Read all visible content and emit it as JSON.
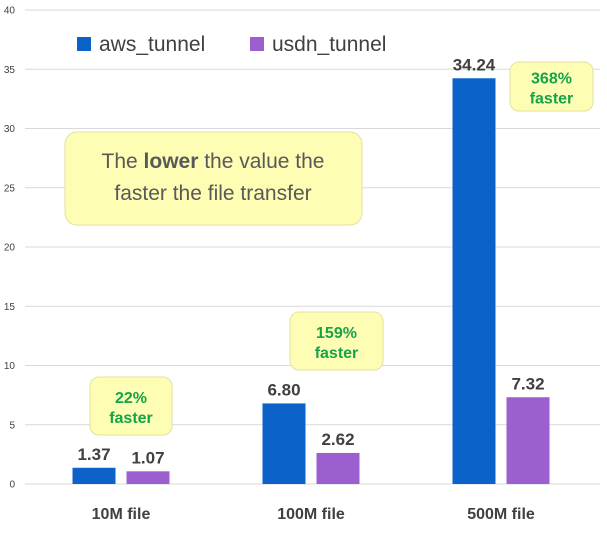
{
  "chart_data": {
    "type": "bar",
    "categories": [
      "10M file",
      "100M file",
      "500M file"
    ],
    "series": [
      {
        "name": "aws_tunnel",
        "color": "#0b63c9",
        "values": [
          1.37,
          6.8,
          34.24
        ],
        "labels": [
          "1.37",
          "6.80",
          "34.24"
        ]
      },
      {
        "name": "usdn_tunnel",
        "color": "#9b5fd0",
        "values": [
          1.07,
          2.62,
          7.32
        ],
        "labels": [
          "1.07",
          "2.62",
          "7.32"
        ]
      }
    ],
    "yticks": [
      "0",
      "5",
      "10",
      "15",
      "20",
      "25",
      "30",
      "35",
      "40"
    ],
    "ylim": [
      0,
      40
    ],
    "grid": true,
    "legend_position": "top-left",
    "annotations": [
      {
        "category": "10M file",
        "line1": "22%",
        "line2": "faster",
        "color": "#17a34a"
      },
      {
        "category": "100M file",
        "line1": "159%",
        "line2": "faster",
        "color": "#17a34a"
      },
      {
        "category": "500M file",
        "line1": "368%",
        "line2": "faster",
        "color": "#17a34a"
      }
    ],
    "note": {
      "before": "The ",
      "bold": "lower",
      "after": " the value the",
      "line2": "faster the file transfer"
    },
    "colors": {
      "grid": "#d9d9d9",
      "callout_bg": "#fdfdb4",
      "callout_border": "#e2e29c",
      "note_text": "#595959",
      "label_text": "#404040"
    }
  }
}
